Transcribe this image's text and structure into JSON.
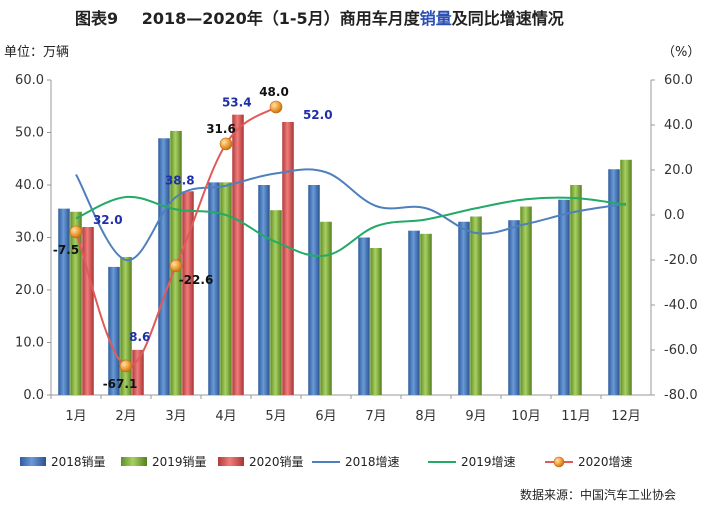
{
  "chart_data": {
    "type": "bar",
    "title_prefix": "图表9",
    "title_main": "2018—2020年（1-5月）商用车月度",
    "title_highlight": "销量",
    "title_suffix": "及同比增速情况",
    "ylabel_left": "单位：万辆",
    "ylabel_right": "（%）",
    "source": "数据来源：中国汽车工业协会",
    "categories": [
      "1月",
      "2月",
      "3月",
      "4月",
      "5月",
      "6月",
      "7月",
      "8月",
      "9月",
      "10月",
      "11月",
      "12月"
    ],
    "ylim_left": [
      0,
      60
    ],
    "yticks_left": [
      "0.0",
      "10.0",
      "20.0",
      "30.0",
      "40.0",
      "50.0",
      "60.0"
    ],
    "ylim_right": [
      -80,
      60
    ],
    "yticks_right": [
      "-80.0",
      "-60.0",
      "-40.0",
      "-20.0",
      "0.0",
      "20.0",
      "40.0",
      "60.0"
    ],
    "bar_series": [
      {
        "name": "2018销量",
        "color": "#4a7fc1",
        "values": [
          35.5,
          24.4,
          48.9,
          40.5,
          40.0,
          40.0,
          30.0,
          31.3,
          33.0,
          33.3,
          37.2,
          43.0
        ]
      },
      {
        "name": "2019销量",
        "color": "#8fbf4a",
        "values": [
          34.9,
          26.3,
          50.3,
          40.5,
          35.2,
          33.0,
          28.0,
          30.7,
          34.0,
          35.9,
          40.0,
          44.8
        ]
      },
      {
        "name": "2020销量",
        "color": "#e05a5a",
        "values": [
          32.0,
          8.6,
          38.8,
          53.4,
          52.0
        ]
      }
    ],
    "bar_data_labels": [
      "32.0",
      "8.6",
      "38.8",
      "53.4",
      "52.0"
    ],
    "line_series": [
      {
        "name": "2018增速",
        "color": "#4f80bd",
        "values": [
          18.0,
          -20.0,
          8.0,
          13.0,
          18.5,
          19.0,
          4.0,
          3.0,
          -8.0,
          -4.0,
          1.5,
          5.0
        ]
      },
      {
        "name": "2019增速",
        "color": "#22aa66",
        "values": [
          -1.5,
          8.0,
          2.5,
          0.0,
          -12.0,
          -18.0,
          -5.0,
          -2.0,
          3.0,
          7.0,
          7.5,
          4.5
        ]
      },
      {
        "name": "2020增速",
        "color": "#f0a030",
        "values": [
          -7.5,
          -67.1,
          -22.6,
          31.6,
          48.0
        ]
      }
    ],
    "line_data_labels": [
      "-7.5",
      "-67.1",
      "-22.6",
      "31.6",
      "48.0"
    ],
    "legend_position": "bottom",
    "grid": false
  }
}
